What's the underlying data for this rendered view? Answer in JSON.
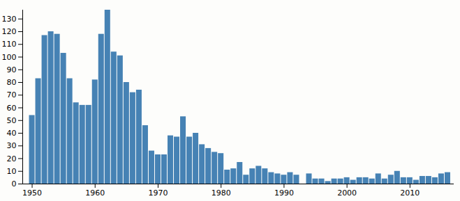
{
  "chart_data": {
    "type": "bar",
    "x": [
      1950,
      1951,
      1952,
      1953,
      1954,
      1955,
      1956,
      1957,
      1958,
      1959,
      1960,
      1961,
      1962,
      1963,
      1964,
      1965,
      1966,
      1967,
      1968,
      1969,
      1970,
      1971,
      1972,
      1973,
      1974,
      1975,
      1976,
      1977,
      1978,
      1979,
      1980,
      1981,
      1982,
      1983,
      1984,
      1985,
      1986,
      1987,
      1988,
      1989,
      1990,
      1991,
      1992,
      1993,
      1994,
      1995,
      1996,
      1997,
      1998,
      1999,
      2000,
      2001,
      2002,
      2003,
      2004,
      2005,
      2006,
      2007,
      2008,
      2009,
      2010,
      2011,
      2012,
      2013,
      2014,
      2015,
      2016
    ],
    "values": [
      54,
      83,
      117,
      120,
      118,
      103,
      83,
      64,
      62,
      62,
      82,
      118,
      137,
      104,
      101,
      80,
      72,
      74,
      46,
      26,
      23,
      23,
      38,
      37,
      53,
      37,
      40,
      31,
      28,
      25,
      24,
      11,
      12,
      17,
      7,
      12,
      14,
      12,
      9,
      8,
      7,
      9,
      7,
      0,
      8,
      4,
      4,
      2,
      4,
      4,
      5,
      3,
      5,
      5,
      4,
      8,
      4,
      7,
      10,
      5,
      5,
      3,
      6,
      6,
      5,
      8,
      9
    ],
    "color": "#4682b4",
    "xlim": [
      1948.5,
      2017
    ],
    "xticks": [
      1950,
      1960,
      1970,
      1980,
      1990,
      2000,
      2010
    ],
    "ylim": [
      0,
      137
    ],
    "yticks": [
      0,
      10,
      20,
      30,
      40,
      50,
      60,
      70,
      80,
      90,
      100,
      110,
      120,
      130
    ],
    "grid": false
  }
}
